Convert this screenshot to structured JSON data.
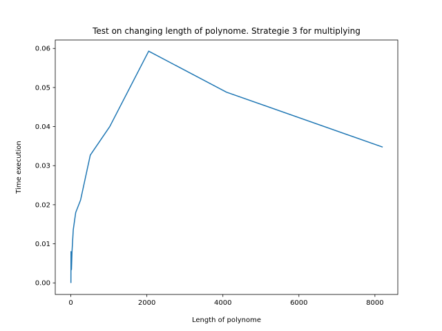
{
  "chart_data": {
    "type": "line",
    "title": "Test on changing length of polynome. Strategie 3 for multiplying",
    "xlabel": "Length of polynome",
    "ylabel": "Time execution",
    "xlim": [
      -410,
      8602
    ],
    "ylim": [
      -0.00296,
      0.06216
    ],
    "xticks": [
      0,
      2000,
      4000,
      6000,
      8000
    ],
    "xtick_labels": [
      "0",
      "2000",
      "4000",
      "6000",
      "8000"
    ],
    "yticks": [
      0.0,
      0.01,
      0.02,
      0.03,
      0.04,
      0.05,
      0.06
    ],
    "ytick_labels": [
      "0.00",
      "0.01",
      "0.02",
      "0.03",
      "0.04",
      "0.05",
      "0.06"
    ],
    "grid": false,
    "legend": "none",
    "series": [
      {
        "color": "#1f77b4",
        "x": [
          2,
          4,
          8,
          16,
          32,
          64,
          128,
          256,
          512,
          1024,
          2048,
          4096,
          8192
        ],
        "y": [
          0.0001,
          0.008,
          0.004,
          0.0034,
          0.0082,
          0.0136,
          0.018,
          0.0212,
          0.0327,
          0.04,
          0.0593,
          0.0488,
          0.0348
        ]
      }
    ]
  }
}
